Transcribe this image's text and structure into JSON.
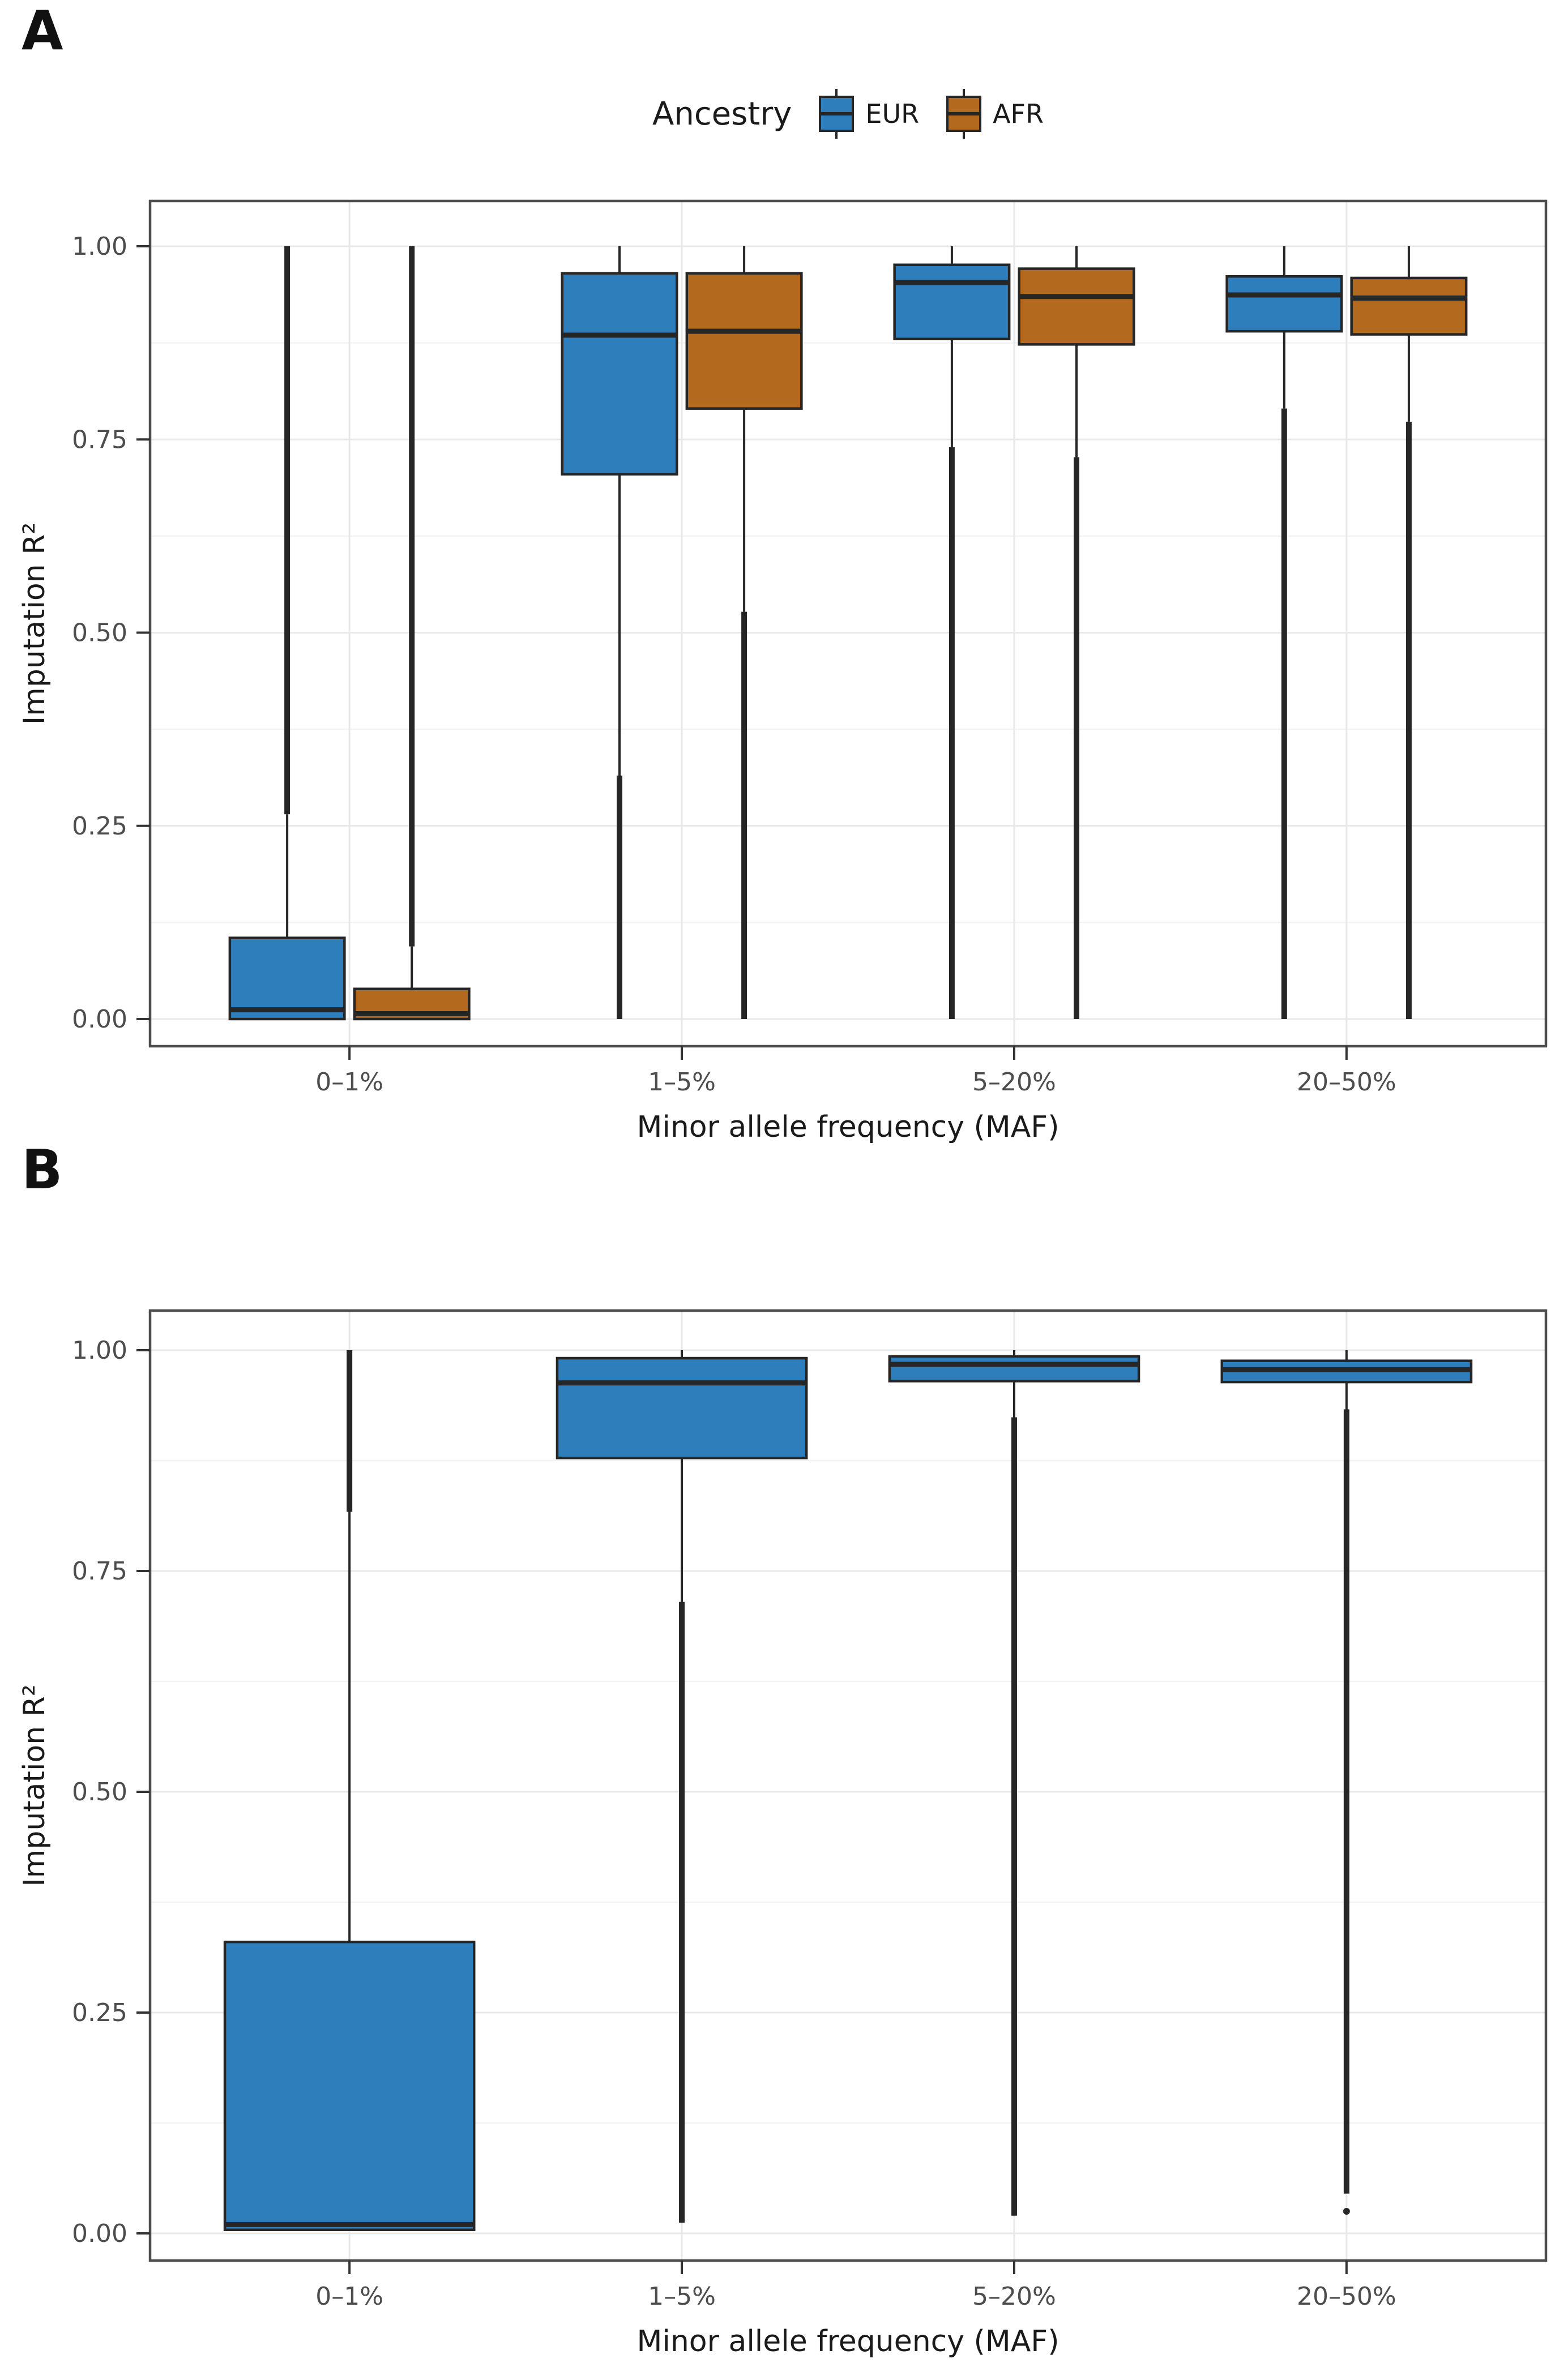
{
  "figure": {
    "panel_a_label": "A",
    "panel_b_label": "B"
  },
  "legend": {
    "title": "Ancestry",
    "position": "top",
    "entries": [
      {
        "label": "EUR",
        "color": "#2E7EBC"
      },
      {
        "label": "AFR",
        "color": "#B46A1E"
      }
    ]
  },
  "axes": {
    "x_title": "Minor allele frequency (MAF)",
    "y_title": "Imputation R²"
  },
  "style_colors": {
    "box_stroke": "#262626",
    "grid_major": "#E8E8E8",
    "grid_minor": "#F3F3F3",
    "panel_border": "#4D4D4D",
    "tick_mark": "#333333",
    "tick_label": "#4D4D4D",
    "axis_title": "#1A1A1A"
  },
  "chart_data": [
    {
      "id": "A",
      "type": "boxplot",
      "categories": [
        "0–1%",
        "1–5%",
        "5–20%",
        "20–50%"
      ],
      "xlabel": "Minor allele frequency (MAF)",
      "ylabel": "Imputation R²",
      "ylim": [
        0,
        1
      ],
      "yticks": [
        {
          "value": 1.0,
          "label": "1.00"
        },
        {
          "value": 0.75,
          "label": "0.75"
        },
        {
          "value": 0.5,
          "label": "0.50"
        },
        {
          "value": 0.25,
          "label": "0.25"
        },
        {
          "value": 0.0,
          "label": "0.00"
        }
      ],
      "minor_grid_values": [
        0.125,
        0.375,
        0.625,
        0.875
      ],
      "grid": {
        "major": true,
        "minor": true
      },
      "legend_position": "top",
      "series": [
        {
          "name": "EUR",
          "fill": "#2E7EBC",
          "boxes": [
            {
              "category": "0–1%",
              "q1": 0.0,
              "median": 0.012,
              "q3": 0.105,
              "whisker_low": null,
              "whisker_high": 0.265,
              "outlier_column_low": null,
              "outlier_column_high": [
                0.265,
                1.0
              ],
              "outlier_dots": []
            },
            {
              "category": "1–5%",
              "q1": 0.705,
              "median": 0.885,
              "q3": 0.965,
              "whisker_low": 0.315,
              "whisker_high": 1.0,
              "outlier_column_low": [
                0.315,
                0.0
              ],
              "outlier_column_high": null,
              "outlier_dots": []
            },
            {
              "category": "5–20%",
              "q1": 0.88,
              "median": 0.953,
              "q3": 0.976,
              "whisker_low": 0.74,
              "whisker_high": 1.0,
              "outlier_column_low": [
                0.74,
                0.0
              ],
              "outlier_column_high": null,
              "outlier_dots": []
            },
            {
              "category": "20–50%",
              "q1": 0.89,
              "median": 0.937,
              "q3": 0.961,
              "whisker_low": 0.79,
              "whisker_high": 1.0,
              "outlier_column_low": [
                0.79,
                0.0
              ],
              "outlier_column_high": null,
              "outlier_dots": []
            }
          ]
        },
        {
          "name": "AFR",
          "fill": "#B46A1E",
          "boxes": [
            {
              "category": "0–1%",
              "q1": 0.0,
              "median": 0.007,
              "q3": 0.039,
              "whisker_low": null,
              "whisker_high": 0.094,
              "outlier_column_low": null,
              "outlier_column_high": [
                0.094,
                1.0
              ],
              "outlier_dots": []
            },
            {
              "category": "1–5%",
              "q1": 0.79,
              "median": 0.89,
              "q3": 0.965,
              "whisker_low": 0.527,
              "whisker_high": 1.0,
              "outlier_column_low": [
                0.527,
                0.0
              ],
              "outlier_column_high": null,
              "outlier_dots": []
            },
            {
              "category": "5–20%",
              "q1": 0.873,
              "median": 0.935,
              "q3": 0.971,
              "whisker_low": 0.727,
              "whisker_high": 1.0,
              "outlier_column_low": [
                0.727,
                0.0
              ],
              "outlier_column_high": null,
              "outlier_dots": []
            },
            {
              "category": "20–50%",
              "q1": 0.886,
              "median": 0.933,
              "q3": 0.959,
              "whisker_low": 0.773,
              "whisker_high": 1.0,
              "outlier_column_low": [
                0.773,
                0.0
              ],
              "outlier_column_high": null,
              "outlier_dots": []
            }
          ]
        }
      ]
    },
    {
      "id": "B",
      "type": "boxplot",
      "categories": [
        "0–1%",
        "1–5%",
        "5–20%",
        "20–50%"
      ],
      "xlabel": "Minor allele frequency (MAF)",
      "ylabel": "Imputation R²",
      "ylim": [
        0,
        1
      ],
      "yticks": [
        {
          "value": 1.0,
          "label": "1.00"
        },
        {
          "value": 0.75,
          "label": "0.75"
        },
        {
          "value": 0.5,
          "label": "0.50"
        },
        {
          "value": 0.25,
          "label": "0.25"
        },
        {
          "value": 0.0,
          "label": "0.00"
        }
      ],
      "minor_grid_values": [
        0.125,
        0.375,
        0.625,
        0.875
      ],
      "grid": {
        "major": true,
        "minor": true
      },
      "legend_position": "none",
      "series": [
        {
          "name": "EUR",
          "fill": "#2E7EBC",
          "boxes": [
            {
              "category": "0–1%",
              "q1": 0.004,
              "median": 0.01,
              "q3": 0.33,
              "whisker_low": null,
              "whisker_high": 0.817,
              "outlier_column_low": null,
              "outlier_column_high": [
                0.817,
                1.0
              ],
              "outlier_dots": []
            },
            {
              "category": "1–5%",
              "q1": 0.878,
              "median": 0.963,
              "q3": 0.991,
              "whisker_low": 0.715,
              "whisker_high": 1.0,
              "outlier_column_low": [
                0.715,
                0.012
              ],
              "outlier_column_high": null,
              "outlier_dots": []
            },
            {
              "category": "5–20%",
              "q1": 0.965,
              "median": 0.984,
              "q3": 0.993,
              "whisker_low": 0.924,
              "whisker_high": 1.0,
              "outlier_column_low": [
                0.924,
                0.02
              ],
              "outlier_column_high": null,
              "outlier_dots": []
            },
            {
              "category": "20–50%",
              "q1": 0.964,
              "median": 0.978,
              "q3": 0.988,
              "whisker_low": 0.933,
              "whisker_high": 1.0,
              "outlier_column_low": [
                0.933,
                0.045
              ],
              "outlier_column_high": null,
              "outlier_dots": [
                0.025
              ]
            }
          ]
        }
      ]
    }
  ]
}
